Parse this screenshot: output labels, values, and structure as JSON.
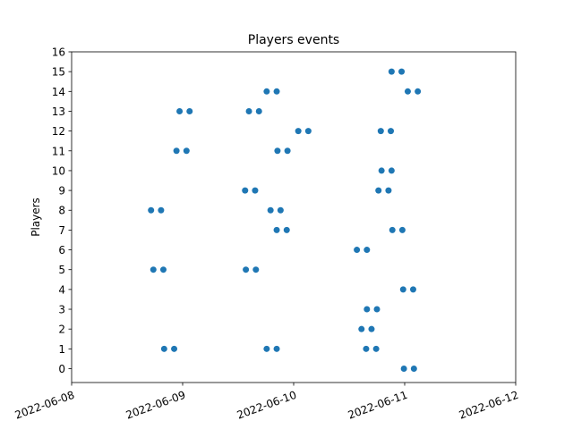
{
  "chart_data": {
    "type": "scatter",
    "title": "Players events",
    "xlabel": "",
    "ylabel": "Players",
    "x_axis_type": "date",
    "xlim": [
      "2022-06-08",
      "2022-06-12"
    ],
    "ylim": [
      -0.7,
      16
    ],
    "x_ticks": [
      "2022-06-08",
      "2022-06-09",
      "2022-06-10",
      "2022-06-11",
      "2022-06-12"
    ],
    "y_ticks": [
      0,
      1,
      2,
      3,
      4,
      5,
      6,
      7,
      8,
      9,
      10,
      11,
      12,
      13,
      14,
      15,
      16
    ],
    "x_tick_rotation_deg": 20,
    "grid": false,
    "legend": "none",
    "marker_color": "#1f77b4",
    "points": [
      {
        "x": "2022-06-10 23:50",
        "y": 0
      },
      {
        "x": "2022-06-11 02:00",
        "y": 0
      },
      {
        "x": "2022-06-08 20:00",
        "y": 1
      },
      {
        "x": "2022-06-08 22:10",
        "y": 1
      },
      {
        "x": "2022-06-09 18:10",
        "y": 1
      },
      {
        "x": "2022-06-09 20:20",
        "y": 1
      },
      {
        "x": "2022-06-10 15:40",
        "y": 1
      },
      {
        "x": "2022-06-10 17:50",
        "y": 1
      },
      {
        "x": "2022-06-10 14:40",
        "y": 2
      },
      {
        "x": "2022-06-10 16:50",
        "y": 2
      },
      {
        "x": "2022-06-10 15:50",
        "y": 3
      },
      {
        "x": "2022-06-10 18:00",
        "y": 3
      },
      {
        "x": "2022-06-10 23:40",
        "y": 4
      },
      {
        "x": "2022-06-11 01:50",
        "y": 4
      },
      {
        "x": "2022-06-08 17:40",
        "y": 5
      },
      {
        "x": "2022-06-08 19:50",
        "y": 5
      },
      {
        "x": "2022-06-09 13:40",
        "y": 5
      },
      {
        "x": "2022-06-09 15:50",
        "y": 5
      },
      {
        "x": "2022-06-10 13:40",
        "y": 6
      },
      {
        "x": "2022-06-10 15:50",
        "y": 6
      },
      {
        "x": "2022-06-09 20:20",
        "y": 7
      },
      {
        "x": "2022-06-09 22:30",
        "y": 7
      },
      {
        "x": "2022-06-10 21:20",
        "y": 7
      },
      {
        "x": "2022-06-10 23:30",
        "y": 7
      },
      {
        "x": "2022-06-08 17:10",
        "y": 8
      },
      {
        "x": "2022-06-08 19:20",
        "y": 8
      },
      {
        "x": "2022-06-09 19:00",
        "y": 8
      },
      {
        "x": "2022-06-09 21:10",
        "y": 8
      },
      {
        "x": "2022-06-09 13:30",
        "y": 9
      },
      {
        "x": "2022-06-09 15:40",
        "y": 9
      },
      {
        "x": "2022-06-10 18:20",
        "y": 9
      },
      {
        "x": "2022-06-10 20:30",
        "y": 9
      },
      {
        "x": "2022-06-10 19:00",
        "y": 10
      },
      {
        "x": "2022-06-10 21:10",
        "y": 10
      },
      {
        "x": "2022-06-08 22:40",
        "y": 11
      },
      {
        "x": "2022-06-09 00:50",
        "y": 11
      },
      {
        "x": "2022-06-09 20:30",
        "y": 11
      },
      {
        "x": "2022-06-09 22:40",
        "y": 11
      },
      {
        "x": "2022-06-10 01:00",
        "y": 12
      },
      {
        "x": "2022-06-10 03:10",
        "y": 12
      },
      {
        "x": "2022-06-10 18:50",
        "y": 12
      },
      {
        "x": "2022-06-10 21:00",
        "y": 12
      },
      {
        "x": "2022-06-08 23:20",
        "y": 13
      },
      {
        "x": "2022-06-09 01:30",
        "y": 13
      },
      {
        "x": "2022-06-09 14:20",
        "y": 13
      },
      {
        "x": "2022-06-09 16:30",
        "y": 13
      },
      {
        "x": "2022-06-09 18:10",
        "y": 14
      },
      {
        "x": "2022-06-09 20:20",
        "y": 14
      },
      {
        "x": "2022-06-11 00:40",
        "y": 14
      },
      {
        "x": "2022-06-11 02:50",
        "y": 14
      },
      {
        "x": "2022-06-10 21:10",
        "y": 15
      },
      {
        "x": "2022-06-10 23:20",
        "y": 15
      }
    ]
  }
}
